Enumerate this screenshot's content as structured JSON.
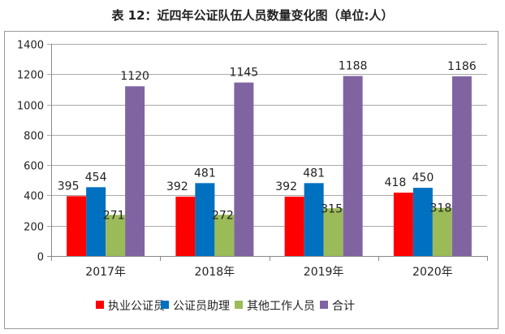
{
  "chart_data": {
    "type": "bar",
    "title": "表 12：近四年公证队伍人员数量变化图（单位:人）",
    "categories": [
      "2017年",
      "2018年",
      "2019年",
      "2020年"
    ],
    "series": [
      {
        "name": "执业公证员",
        "color": "#ff0000",
        "values": [
          395,
          392,
          392,
          418
        ]
      },
      {
        "name": "公证员助理",
        "color": "#0070c0",
        "values": [
          454,
          481,
          481,
          450
        ]
      },
      {
        "name": "其他工作人员",
        "color": "#9bbb59",
        "values": [
          271,
          272,
          315,
          318
        ]
      },
      {
        "name": "合计",
        "color": "#8064a2",
        "values": [
          1120,
          1145,
          1188,
          1186
        ]
      }
    ],
    "xlabel": "",
    "ylabel": "",
    "ylim": [
      0,
      1400
    ],
    "yticks": [
      0,
      200,
      400,
      600,
      800,
      1000,
      1200,
      1400
    ],
    "grid": true,
    "legend": "bottom"
  }
}
